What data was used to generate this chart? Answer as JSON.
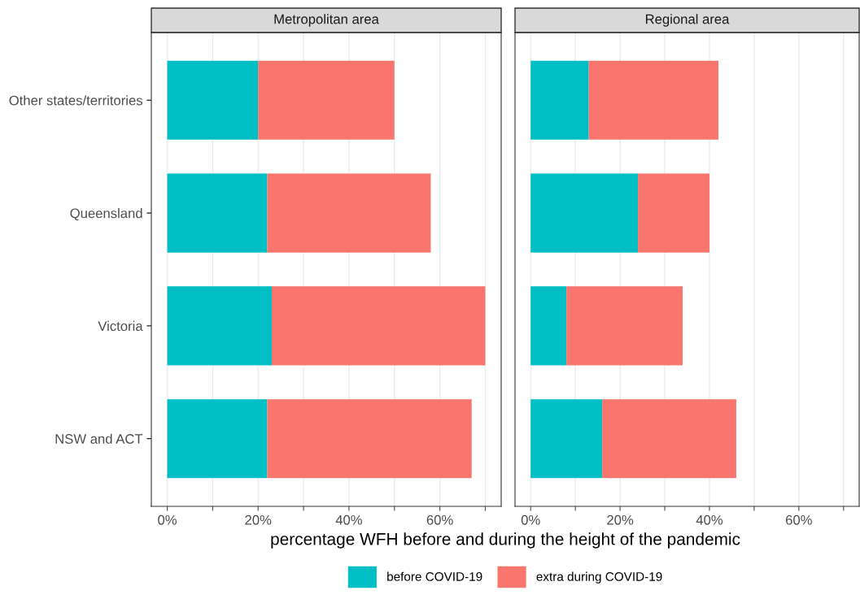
{
  "chart_data": [
    {
      "type": "bar",
      "orientation": "horizontal",
      "stacked": true,
      "title": "Metropolitan area",
      "xlabel": "percentage WFH before and during the height of the pandemic",
      "categories": [
        "Other states/territories",
        "Queensland",
        "Victoria",
        "NSW and ACT"
      ],
      "series": [
        {
          "name": "before COVID-19",
          "color": "#00bfc4",
          "values": [
            20,
            22,
            23,
            22
          ]
        },
        {
          "name": "extra during COVID-19",
          "color": "#f8766d",
          "values": [
            30,
            36,
            47,
            45
          ]
        }
      ],
      "xlim": [
        -3.5,
        73.5
      ],
      "xticks": [
        {
          "value": 0,
          "label": "0%"
        },
        {
          "value": 10,
          "label": null
        },
        {
          "value": 20,
          "label": "20%"
        },
        {
          "value": 30,
          "label": null
        },
        {
          "value": 40,
          "label": "40%"
        },
        {
          "value": 50,
          "label": null
        },
        {
          "value": 60,
          "label": "60%"
        },
        {
          "value": 70,
          "label": null
        }
      ],
      "grid": "x",
      "legend": "bottom"
    },
    {
      "type": "bar",
      "orientation": "horizontal",
      "stacked": true,
      "title": "Regional area",
      "categories": [
        null,
        null,
        null,
        null
      ],
      "series": [
        {
          "color": "#00bfc4",
          "values": [
            13,
            24,
            8,
            16
          ]
        },
        {
          "color": "#f8766d",
          "values": [
            29,
            16,
            26,
            30
          ]
        }
      ],
      "xlim": [
        -3.5,
        73.5
      ],
      "xticks": [
        {
          "value": 0,
          "label": "0%"
        },
        {
          "value": 10,
          "label": null
        },
        {
          "value": 20,
          "label": "20%"
        },
        {
          "value": 30,
          "label": null
        },
        {
          "value": 40,
          "label": "40%"
        },
        {
          "value": 50,
          "label": null
        },
        {
          "value": 60,
          "label": "60%"
        },
        {
          "value": 70,
          "label": null
        }
      ],
      "grid": "x",
      "tick_labels": "x"
    }
  ]
}
